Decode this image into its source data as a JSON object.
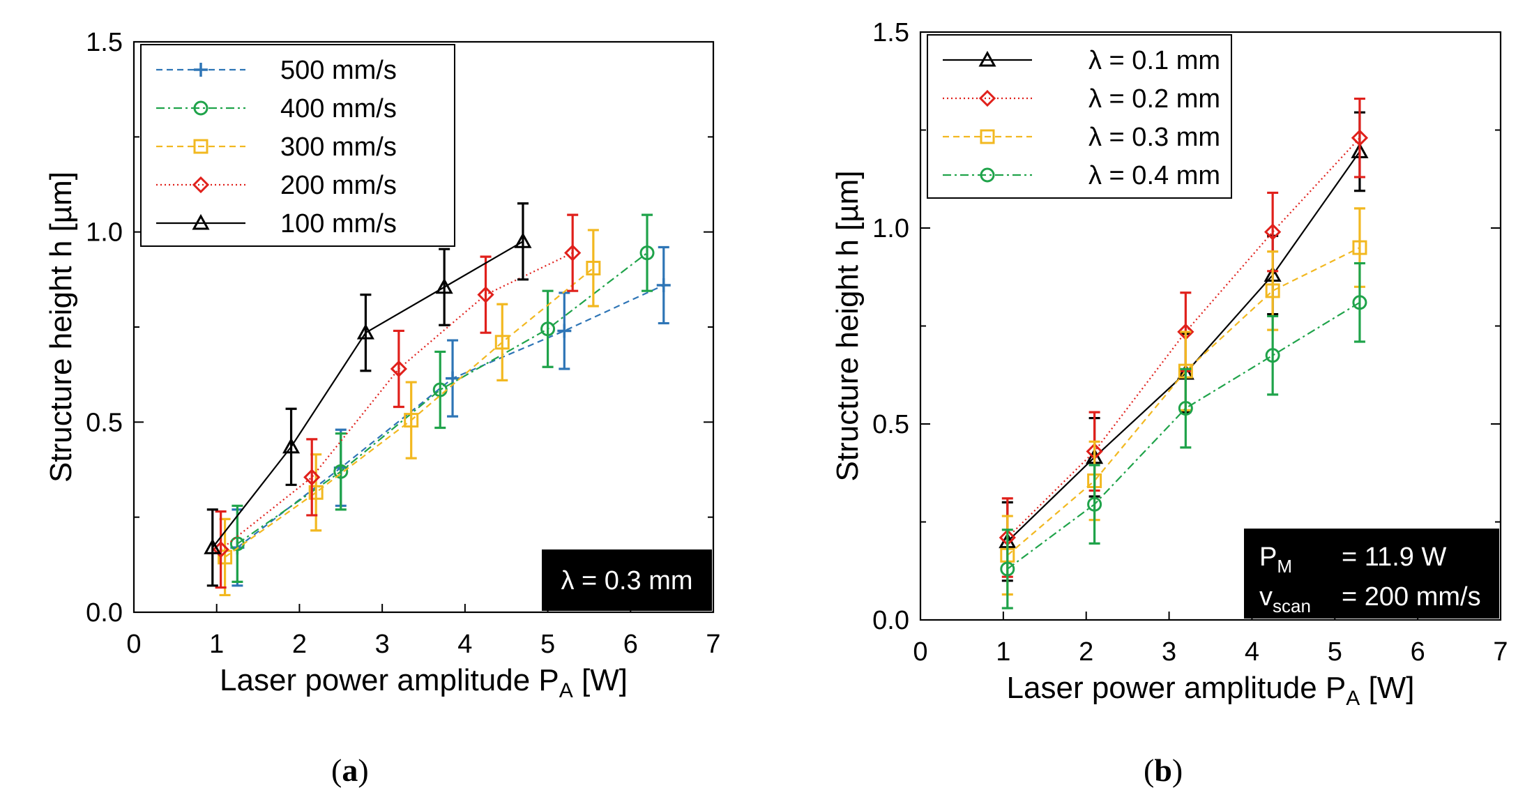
{
  "chart_data": [
    {
      "type": "line",
      "panel_label": "a",
      "xlabel": "Laser power amplitude P",
      "xlabel_sub": "A",
      "xlabel_unit": " [W]",
      "ylabel": "Structure height h [µm]",
      "xlim": [
        0,
        7
      ],
      "ylim": [
        0,
        1.5
      ],
      "xticks": [
        "0",
        "1",
        "2",
        "3",
        "4",
        "5",
        "6",
        "7"
      ],
      "yticks": [
        "0.0",
        "0.5",
        "1.0",
        "1.5"
      ],
      "legend_position": "top-left",
      "annotation": [
        "λ = 0.3 mm"
      ],
      "annotation_position": "bottom-right",
      "series": [
        {
          "name": "500 mm/s",
          "color": "#2e75b6",
          "dash": "dashed",
          "marker": "plus",
          "x": [
            1.25,
            2.5,
            3.85,
            5.2,
            6.4
          ],
          "y": [
            0.17,
            0.38,
            0.615,
            0.74,
            0.86
          ],
          "err": 0.1
        },
        {
          "name": "400 mm/s",
          "color": "#1fa34a",
          "dash": "dashdot",
          "marker": "circle",
          "x": [
            1.25,
            2.5,
            3.7,
            5.0,
            6.2
          ],
          "y": [
            0.18,
            0.37,
            0.585,
            0.745,
            0.945
          ],
          "err": 0.1
        },
        {
          "name": "300 mm/s",
          "color": "#f2b820",
          "dash": "dashed",
          "marker": "square",
          "x": [
            1.1,
            2.2,
            3.35,
            4.45,
            5.55
          ],
          "y": [
            0.145,
            0.315,
            0.505,
            0.71,
            0.905
          ],
          "err": 0.1
        },
        {
          "name": "200 mm/s",
          "color": "#e0201b",
          "dash": "dotted",
          "marker": "diamond",
          "x": [
            1.05,
            2.15,
            3.2,
            4.25,
            5.3
          ],
          "y": [
            0.165,
            0.355,
            0.64,
            0.835,
            0.945
          ],
          "err": 0.1
        },
        {
          "name": "100 mm/s",
          "color": "#000000",
          "dash": "solid",
          "marker": "triangle",
          "x": [
            0.95,
            1.9,
            2.8,
            3.75,
            4.7
          ],
          "y": [
            0.17,
            0.435,
            0.735,
            0.855,
            0.975
          ],
          "err": 0.1
        }
      ]
    },
    {
      "type": "line",
      "panel_label": "b",
      "xlabel": "Laser power amplitude P",
      "xlabel_sub": "A",
      "xlabel_unit": " [W]",
      "ylabel": "Structure height h [µm]",
      "xlim": [
        0,
        7
      ],
      "ylim": [
        0,
        1.5
      ],
      "xticks": [
        "0",
        "1",
        "2",
        "3",
        "4",
        "5",
        "6",
        "7"
      ],
      "yticks": [
        "0.0",
        "0.5",
        "1.0",
        "1.5"
      ],
      "legend_position": "top-left",
      "annotation_lines": [
        {
          "var": "P",
          "sub": "M",
          "value": "= 11.9 W"
        },
        {
          "var": "v",
          "sub": "scan",
          "value": "= 200 mm/s"
        }
      ],
      "annotation_position": "bottom-right",
      "series": [
        {
          "name": "λ = 0.1 mm",
          "color": "#000000",
          "dash": "solid",
          "marker": "triangle",
          "x": [
            1.05,
            2.1,
            3.2,
            4.25,
            5.3
          ],
          "y": [
            0.2,
            0.415,
            0.63,
            0.88,
            1.195
          ],
          "err": 0.1
        },
        {
          "name": "λ = 0.2 mm",
          "color": "#e0201b",
          "dash": "dotted",
          "marker": "diamond",
          "x": [
            1.05,
            2.1,
            3.2,
            4.25,
            5.3
          ],
          "y": [
            0.21,
            0.43,
            0.735,
            0.99,
            1.23
          ],
          "err": 0.1
        },
        {
          "name": "λ = 0.3 mm",
          "color": "#f2b820",
          "dash": "dashed",
          "marker": "square",
          "x": [
            1.05,
            2.1,
            3.2,
            4.25,
            5.3
          ],
          "y": [
            0.165,
            0.355,
            0.635,
            0.84,
            0.95
          ],
          "err": 0.1
        },
        {
          "name": "λ = 0.4 mm",
          "color": "#1fa34a",
          "dash": "dashdot",
          "marker": "circle",
          "x": [
            1.05,
            2.1,
            3.2,
            4.25,
            5.3
          ],
          "y": [
            0.13,
            0.295,
            0.54,
            0.675,
            0.81
          ],
          "err": 0.1
        }
      ]
    }
  ]
}
